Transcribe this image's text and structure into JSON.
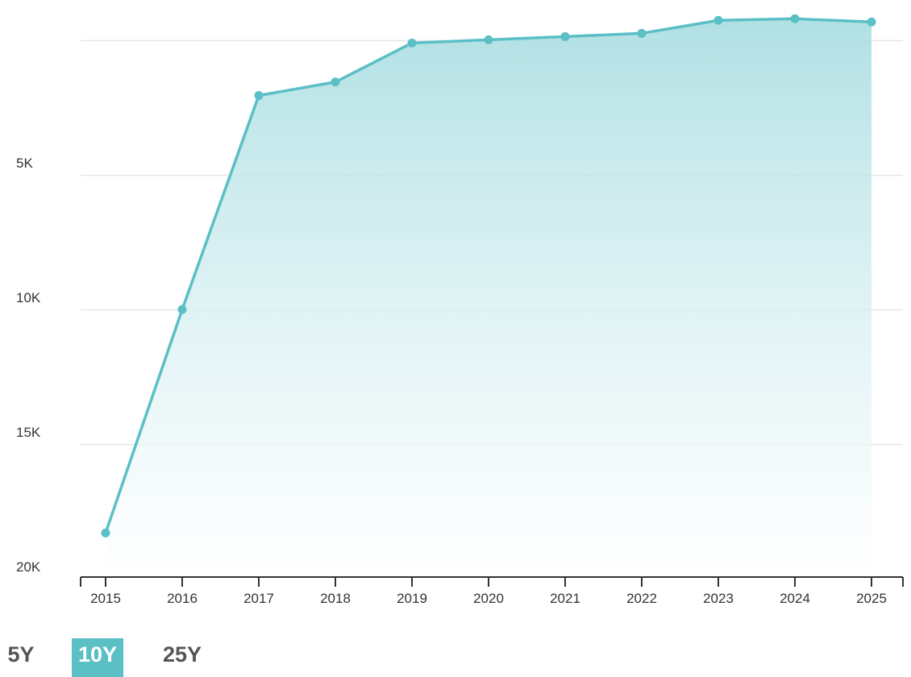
{
  "chart_data": {
    "type": "area",
    "x": [
      "2015",
      "2016",
      "2017",
      "2018",
      "2019",
      "2020",
      "2021",
      "2022",
      "2023",
      "2024",
      "2025"
    ],
    "series": [
      {
        "values": [
          18300,
          10000,
          2050,
          1550,
          100,
          -20,
          -140,
          -260,
          -740,
          -800,
          -680
        ]
      }
    ],
    "y_axis": {
      "inverted": true,
      "ticks": [
        5000,
        10000,
        15000,
        20000
      ],
      "tick_labels": [
        "5K",
        "10K",
        "15K",
        "20K"
      ],
      "range": [
        0,
        20000
      ]
    },
    "grid": true,
    "colors": {
      "line": "#5bbfc6",
      "fill_top": "#a8dde1",
      "fill_bottom": "#ffffff",
      "grid": "#e6e6e6",
      "axis": "#333333"
    }
  },
  "range_selector": {
    "options": [
      {
        "label": "5Y",
        "active": false
      },
      {
        "label": "10Y",
        "active": true
      },
      {
        "label": "25Y",
        "active": false
      }
    ],
    "active_color": "#5bbfc6"
  }
}
